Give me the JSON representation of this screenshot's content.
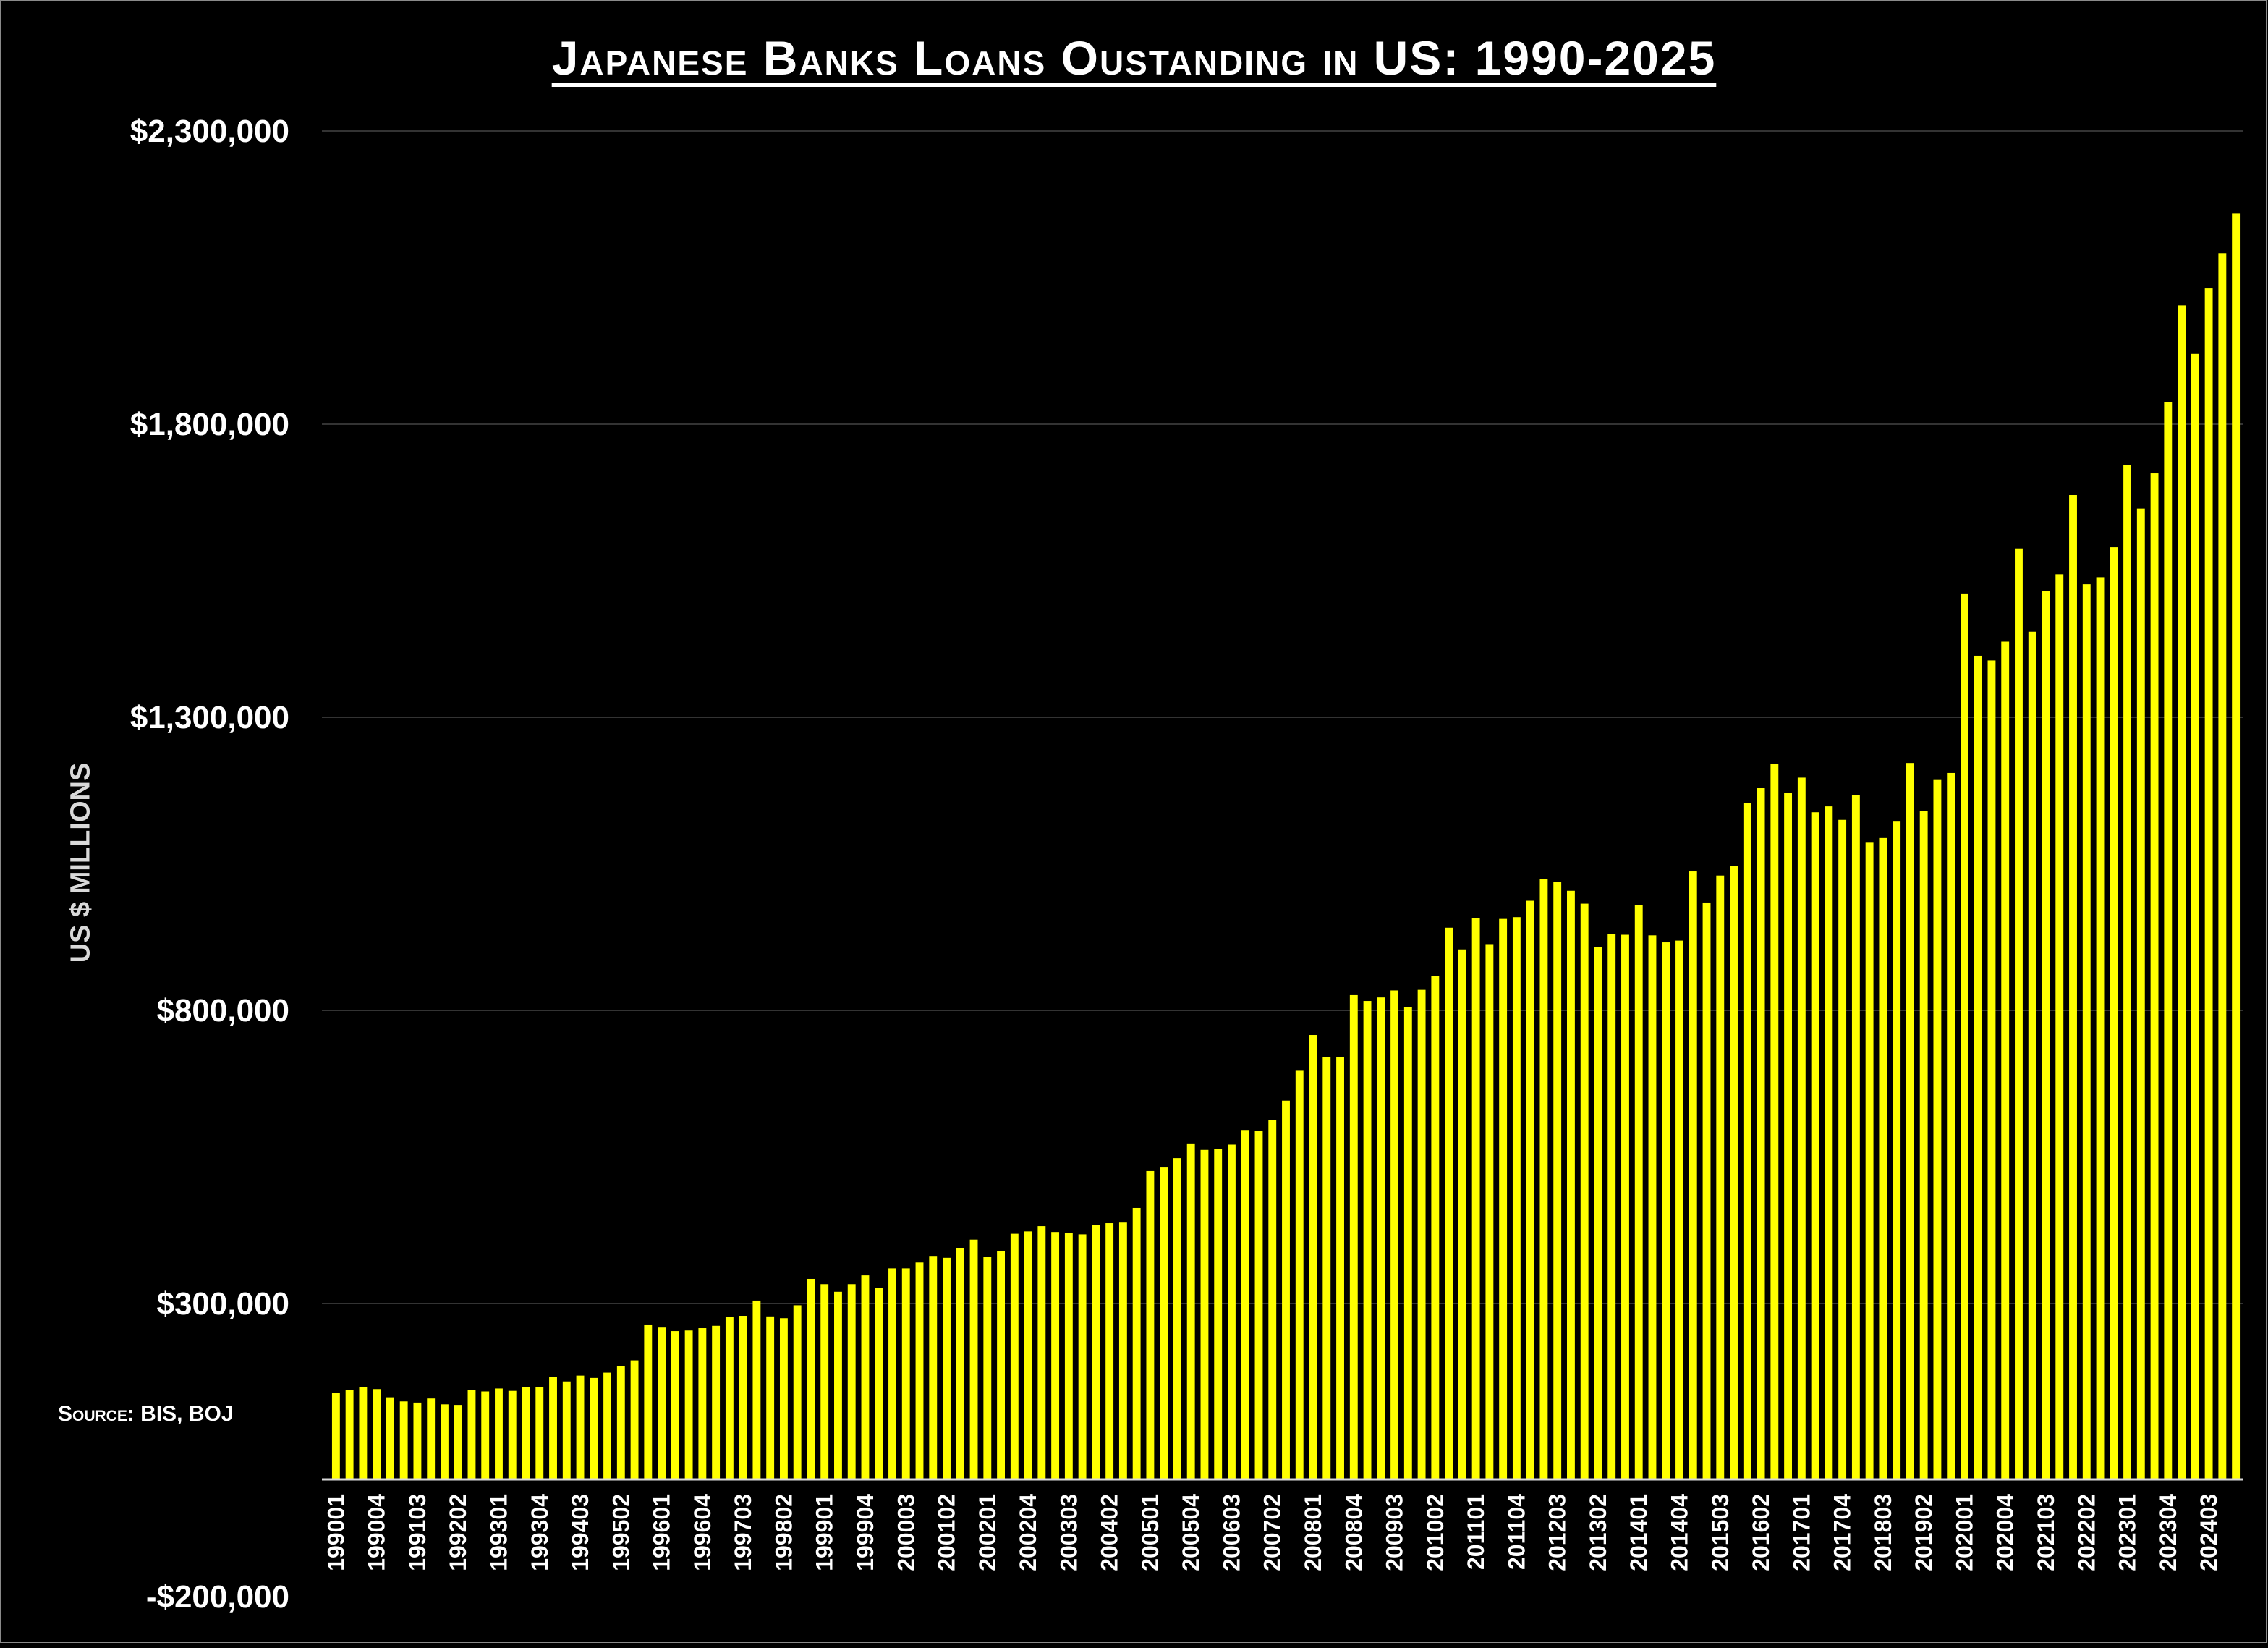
{
  "chart_data": {
    "type": "bar",
    "title": "Japanese Banks Loans Oustanding in US: 1990-2025",
    "ylabel": "US $ MILLIONS",
    "xlabel": "",
    "source": "Source: BIS, BOJ",
    "ylim": [
      -200000,
      2300000
    ],
    "yticks": [
      "$2,300,000",
      "$1,800,000",
      "$1,300,000",
      "$800,000",
      "$300,000",
      "-$200,000"
    ],
    "ytick_values": [
      2300000,
      1800000,
      1300000,
      800000,
      300000,
      -200000
    ],
    "grid": true,
    "bar_color": "#ffff00",
    "grid_color": "#333333",
    "x_tick_labels": [
      "199001",
      "199004",
      "199103",
      "199202",
      "199301",
      "199304",
      "199403",
      "199502",
      "199601",
      "199604",
      "199703",
      "199802",
      "199901",
      "199904",
      "200003",
      "200102",
      "200201",
      "200204",
      "200303",
      "200402",
      "200501",
      "200504",
      "200603",
      "200702",
      "200801",
      "200804",
      "200903",
      "201002",
      "201101",
      "201104",
      "201203",
      "201302",
      "201401",
      "201404",
      "201503",
      "201602",
      "201701",
      "201704",
      "201803",
      "201902",
      "202001",
      "202004",
      "202103",
      "202202",
      "202301",
      "202304",
      "202403"
    ],
    "categories": [
      "199001",
      "199002",
      "199003",
      "199004",
      "199101",
      "199102",
      "199103",
      "199104",
      "199201",
      "199202",
      "199203",
      "199204",
      "199301",
      "199302",
      "199303",
      "199304",
      "199401",
      "199402",
      "199403",
      "199404",
      "199501",
      "199502",
      "199503",
      "199504",
      "199601",
      "199602",
      "199603",
      "199604",
      "199701",
      "199702",
      "199703",
      "199704",
      "199801",
      "199802",
      "199803",
      "199804",
      "199901",
      "199902",
      "199903",
      "199904",
      "200001",
      "200002",
      "200003",
      "200004",
      "200101",
      "200102",
      "200103",
      "200104",
      "200201",
      "200202",
      "200203",
      "200204",
      "200301",
      "200302",
      "200303",
      "200304",
      "200401",
      "200402",
      "200403",
      "200404",
      "200501",
      "200502",
      "200503",
      "200504",
      "200601",
      "200602",
      "200603",
      "200604",
      "200701",
      "200702",
      "200703",
      "200704",
      "200801",
      "200802",
      "200803",
      "200804",
      "200901",
      "200902",
      "200903",
      "200904",
      "201001",
      "201002",
      "201003",
      "201004",
      "201101",
      "201102",
      "201103",
      "201104",
      "201201",
      "201202",
      "201203",
      "201204",
      "201301",
      "201302",
      "201303",
      "201304",
      "201401",
      "201402",
      "201403",
      "201404",
      "201501",
      "201502",
      "201503",
      "201504",
      "201601",
      "201602",
      "201603",
      "201604",
      "201701",
      "201702",
      "201703",
      "201704",
      "201801",
      "201802",
      "201803",
      "201804",
      "201901",
      "201902",
      "201903",
      "201904",
      "202001",
      "202002",
      "202003",
      "202004",
      "202101",
      "202102",
      "202103",
      "202104",
      "202201",
      "202202",
      "202203",
      "202204",
      "202301",
      "202302",
      "202303",
      "202304",
      "202401",
      "202402",
      "202403",
      "202404",
      "202501"
    ],
    "values": [
      148000,
      152000,
      158000,
      154000,
      140000,
      133000,
      131000,
      138000,
      128000,
      127000,
      152000,
      150000,
      155000,
      151000,
      158000,
      158000,
      175000,
      167000,
      177000,
      173000,
      182000,
      193000,
      203000,
      263000,
      259000,
      253000,
      254000,
      258000,
      262000,
      277000,
      279000,
      305000,
      278000,
      275000,
      297000,
      342000,
      333000,
      320000,
      333000,
      348000,
      327000,
      360000,
      360000,
      370000,
      380000,
      378000,
      395000,
      409000,
      379000,
      389000,
      419000,
      423000,
      432000,
      422000,
      421000,
      418000,
      434000,
      437000,
      438000,
      463000,
      526000,
      532000,
      548000,
      573000,
      562000,
      564000,
      571000,
      596000,
      594000,
      613000,
      646000,
      697000,
      758000,
      720000,
      720000,
      826000,
      816000,
      822000,
      834000,
      805000,
      835000,
      859000,
      941000,
      904000,
      957000,
      913000,
      956000,
      959000,
      987000,
      1024000,
      1019000,
      1004000,
      982000,
      908000,
      930000,
      929000,
      980000,
      928000,
      916000,
      919000,
      1037000,
      984000,
      1030000,
      1046000,
      1154000,
      1179000,
      1221000,
      1171000,
      1197000,
      1138000,
      1148000,
      1125000,
      1167000,
      1086000,
      1094000,
      1122000,
      1222000,
      1140000,
      1193000,
      1205000,
      1510000,
      1405000,
      1397000,
      1429000,
      1588000,
      1446000,
      1516000,
      1544000,
      1679000,
      1527000,
      1539000,
      1590000,
      1730000,
      1656000,
      1716000,
      1838000,
      2002000,
      1920000,
      2032000,
      2091000,
      2160000
    ]
  }
}
